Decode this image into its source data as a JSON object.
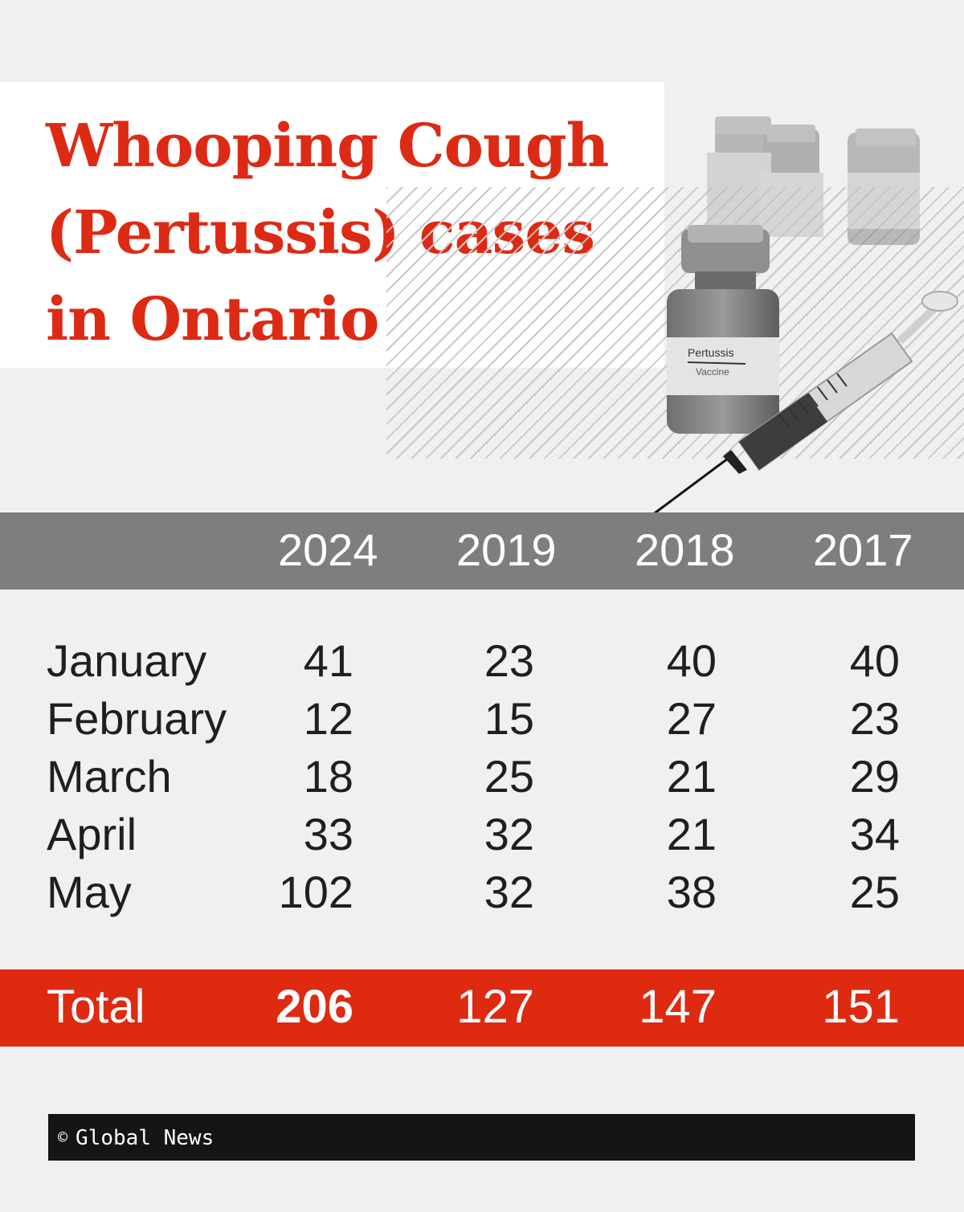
{
  "title": "Whooping Cough (Pertussis) cases in Ontario",
  "photo": {
    "vial_label_main": "Pertussis",
    "vial_label_sub": "Vaccine"
  },
  "chart_data": {
    "type": "table",
    "title": "Whooping Cough (Pertussis) cases in Ontario",
    "columns": [
      "2024",
      "2019",
      "2018",
      "2017"
    ],
    "rows": [
      {
        "label": "January",
        "values": [
          "41",
          "23",
          "40",
          "40"
        ]
      },
      {
        "label": "February",
        "values": [
          "12",
          "15",
          "27",
          "23"
        ]
      },
      {
        "label": "March",
        "values": [
          "18",
          "25",
          "21",
          "29"
        ]
      },
      {
        "label": "April",
        "values": [
          "33",
          "32",
          "21",
          "34"
        ]
      },
      {
        "label": "May",
        "values": [
          "102",
          "32",
          "38",
          "25"
        ]
      }
    ],
    "total": {
      "label": "Total",
      "values": [
        "206",
        "127",
        "147",
        "151"
      ]
    }
  },
  "colors": {
    "accent": "#dd2a10",
    "header": "#7f7e7f",
    "footer": "#151515",
    "background": "#f0f0f0"
  },
  "footer": {
    "copyright_symbol": "©",
    "credit": "Global News"
  }
}
